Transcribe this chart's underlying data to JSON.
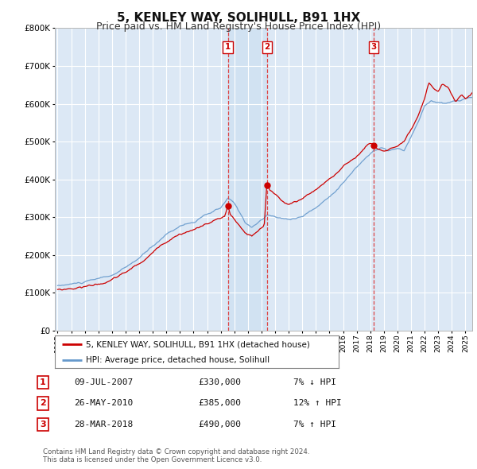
{
  "title": "5, KENLEY WAY, SOLIHULL, B91 1HX",
  "subtitle": "Price paid vs. HM Land Registry's House Price Index (HPI)",
  "background_color": "#ffffff",
  "plot_bg_color": "#dce8f5",
  "highlight_bg_color": "#e8f0fa",
  "grid_color": "#ffffff",
  "ylim": [
    0,
    800000
  ],
  "yticks": [
    0,
    100000,
    200000,
    300000,
    400000,
    500000,
    600000,
    700000,
    800000
  ],
  "ytick_labels": [
    "£0",
    "£100K",
    "£200K",
    "£300K",
    "£400K",
    "£500K",
    "£600K",
    "£700K",
    "£800K"
  ],
  "transactions": [
    {
      "date_num": 2007.52,
      "price": 330000,
      "label": "1"
    },
    {
      "date_num": 2010.4,
      "price": 385000,
      "label": "2"
    },
    {
      "date_num": 2018.24,
      "price": 490000,
      "label": "3"
    }
  ],
  "vline_color": "#dd4444",
  "hpi_color": "#6699cc",
  "price_color": "#cc0000",
  "marker_color": "#cc0000",
  "legend_label_price": "5, KENLEY WAY, SOLIHULL, B91 1HX (detached house)",
  "legend_label_hpi": "HPI: Average price, detached house, Solihull",
  "table_rows": [
    {
      "num": "1",
      "date": "09-JUL-2007",
      "price": "£330,000",
      "hpi": "7% ↓ HPI"
    },
    {
      "num": "2",
      "date": "26-MAY-2010",
      "price": "£385,000",
      "hpi": "12% ↑ HPI"
    },
    {
      "num": "3",
      "date": "28-MAR-2018",
      "price": "£490,000",
      "hpi": "7% ↑ HPI"
    }
  ],
  "footer": "Contains HM Land Registry data © Crown copyright and database right 2024.\nThis data is licensed under the Open Government Licence v3.0.",
  "title_fontsize": 11,
  "subtitle_fontsize": 9
}
